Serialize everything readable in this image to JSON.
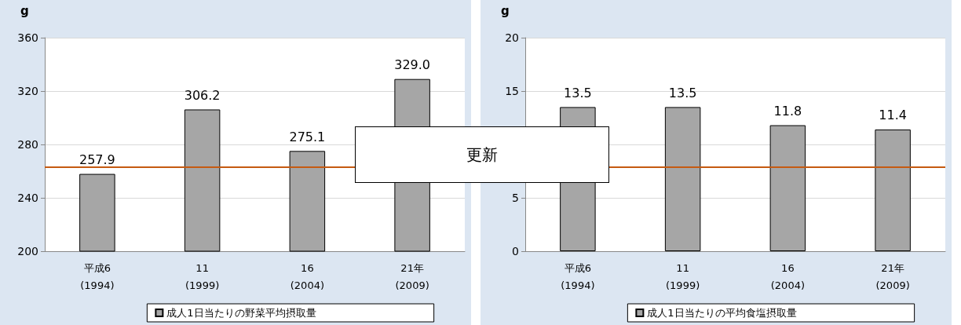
{
  "chart_data": [
    {
      "type": "bar",
      "ylabel": "g",
      "categories": [
        "平成6\n(1994)",
        "11\n(1999)",
        "16\n(2004)",
        "21年\n(2009)"
      ],
      "series": [
        {
          "name": "成人1日当たりの野菜平均摂取量",
          "color": "#a6a6a6",
          "values": [
            257.9,
            306.2,
            275.1,
            329.0
          ],
          "value_labels": [
            "257.9",
            "306.2",
            "275.1",
            "329.0"
          ]
        }
      ],
      "ylim": [
        200,
        360
      ],
      "yticks": [
        200,
        240,
        280,
        320,
        360
      ],
      "grid": "y",
      "legend": "bottom",
      "ref_lines": [
        {
          "axis": "y",
          "value": 263,
          "color": "#c55a11"
        }
      ],
      "annotations": [
        "更新"
      ]
    },
    {
      "type": "bar",
      "ylabel": "g",
      "categories": [
        "平成6\n(1994)",
        "11\n(1999)",
        "16\n(2004)",
        "21年\n(2009)"
      ],
      "series": [
        {
          "name": "成人1日当たりの平均食塩摂取量",
          "color": "#a6a6a6",
          "values": [
            13.5,
            13.5,
            11.8,
            11.4
          ],
          "value_labels": [
            "13.5",
            "13.5",
            "11.8",
            "11.4"
          ]
        }
      ],
      "ylim": [
        0,
        20
      ],
      "yticks": [
        0,
        5,
        {
          "value": 10,
          "label": null
        },
        15,
        20
      ],
      "grid": "y",
      "legend": "bottom",
      "ref_lines": [
        {
          "axis": "y",
          "value": 7.9,
          "color": "#c55a11"
        }
      ]
    }
  ]
}
